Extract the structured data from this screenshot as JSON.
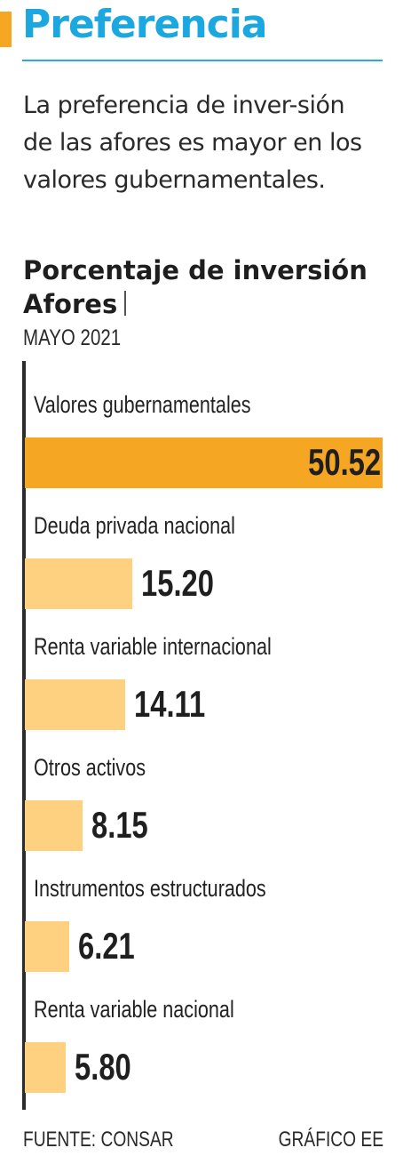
{
  "header": {
    "title": "Preferencia",
    "intro": "La preferencia de inver-sión de las afores es mayor en los valores gubernamentales.",
    "accent_color": "#1ba8e0",
    "mark_color": "#f5a623"
  },
  "chart_data": {
    "type": "bar",
    "orientation": "horizontal",
    "title": "Porcentaje de inversión Afores",
    "subtitle": "MAYO 2021",
    "categories": [
      "Valores gubernamentales",
      "Deuda privada nacional",
      "Renta variable internacional",
      "Otros activos",
      "Instrumentos estructurados",
      "Renta variable nacional"
    ],
    "values": [
      50.52,
      15.2,
      14.11,
      8.15,
      6.21,
      5.8
    ],
    "value_labels": [
      "50.52",
      "15.20",
      "14.11",
      "8.15",
      "6.21",
      "5.80"
    ],
    "highlight_color": "#f5a623",
    "bar_color": "#fdd17f",
    "grid": false
  },
  "footer": {
    "source": "FUENTE: CONSAR",
    "credit": "GRÁFICO EE"
  }
}
